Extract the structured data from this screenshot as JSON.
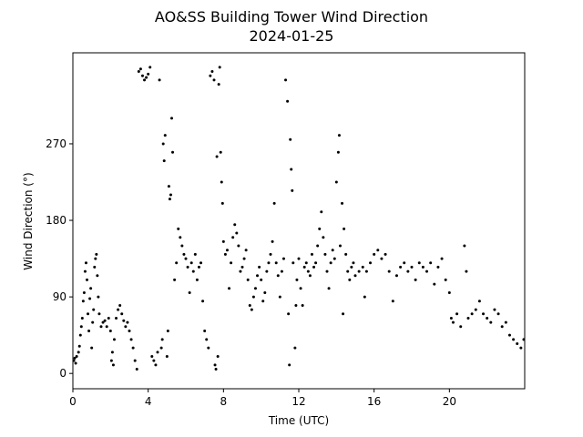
{
  "chart_data": {
    "type": "scatter",
    "title": "AO&SS Building Tower Wind Direction",
    "subtitle": "2024-01-25",
    "x_label": "Time (UTC)",
    "y_label": "Wind Direction (°)",
    "color": "#000000",
    "grid": false,
    "xlim": [
      0,
      24
    ],
    "xticks": [
      0,
      4,
      8,
      12,
      16,
      20
    ],
    "ylim": [
      -18,
      377
    ],
    "yticks": [
      0,
      90,
      180,
      270
    ],
    "x": [
      0.05,
      0.1,
      0.15,
      0.2,
      0.3,
      0.35,
      0.4,
      0.45,
      0.5,
      0.55,
      0.6,
      0.65,
      0.7,
      0.75,
      0.8,
      0.85,
      0.9,
      0.95,
      1.0,
      1.05,
      1.1,
      1.15,
      1.2,
      1.25,
      1.3,
      1.35,
      1.4,
      1.5,
      1.6,
      1.7,
      1.8,
      1.9,
      2.0,
      2.05,
      2.1,
      2.15,
      2.2,
      2.3,
      2.4,
      2.5,
      2.6,
      2.7,
      2.8,
      2.9,
      3.0,
      3.1,
      3.2,
      3.3,
      3.4,
      3.5,
      3.6,
      3.7,
      3.8,
      3.9,
      4.0,
      4.1,
      4.2,
      4.3,
      4.4,
      4.5,
      4.6,
      4.7,
      4.75,
      4.8,
      4.85,
      4.9,
      5.0,
      5.05,
      5.1,
      5.15,
      5.2,
      5.25,
      5.3,
      5.4,
      5.5,
      5.6,
      5.7,
      5.8,
      5.9,
      6.0,
      6.1,
      6.2,
      6.3,
      6.4,
      6.5,
      6.6,
      6.7,
      6.8,
      6.9,
      7.0,
      7.1,
      7.2,
      7.3,
      7.4,
      7.5,
      7.55,
      7.6,
      7.65,
      7.7,
      7.75,
      7.8,
      7.85,
      7.9,
      7.95,
      8.0,
      8.1,
      8.2,
      8.3,
      8.4,
      8.5,
      8.6,
      8.7,
      8.8,
      8.9,
      9.0,
      9.1,
      9.2,
      9.3,
      9.4,
      9.5,
      9.6,
      9.7,
      9.8,
      9.9,
      10.0,
      10.1,
      10.2,
      10.3,
      10.4,
      10.5,
      10.6,
      10.7,
      10.8,
      10.9,
      11.0,
      11.1,
      11.2,
      11.3,
      11.4,
      11.45,
      11.5,
      11.55,
      11.6,
      11.65,
      11.7,
      11.8,
      11.85,
      11.9,
      12.0,
      12.1,
      12.2,
      12.3,
      12.4,
      12.5,
      12.6,
      12.7,
      12.8,
      12.9,
      13.0,
      13.1,
      13.2,
      13.3,
      13.4,
      13.5,
      13.6,
      13.7,
      13.8,
      13.9,
      14.0,
      14.1,
      14.15,
      14.2,
      14.3,
      14.35,
      14.4,
      14.5,
      14.6,
      14.7,
      14.8,
      14.9,
      15.0,
      15.2,
      15.4,
      15.5,
      15.6,
      15.8,
      16.0,
      16.2,
      16.4,
      16.6,
      16.8,
      17.0,
      17.2,
      17.4,
      17.6,
      17.8,
      18.0,
      18.2,
      18.4,
      18.6,
      18.8,
      19.0,
      19.2,
      19.4,
      19.6,
      19.8,
      20.0,
      20.1,
      20.2,
      20.4,
      20.6,
      20.8,
      20.9,
      21.0,
      21.2,
      21.4,
      21.6,
      21.8,
      22.0,
      22.2,
      22.4,
      22.6,
      22.8,
      23.0,
      23.2,
      23.4,
      23.6,
      23.8,
      23.95
    ],
    "values": [
      15,
      18,
      12,
      20,
      25,
      32,
      45,
      55,
      65,
      85,
      95,
      120,
      130,
      110,
      70,
      50,
      88,
      100,
      30,
      60,
      75,
      125,
      135,
      140,
      115,
      90,
      70,
      55,
      60,
      62,
      55,
      65,
      50,
      15,
      25,
      10,
      40,
      65,
      75,
      80,
      70,
      62,
      55,
      60,
      50,
      40,
      30,
      15,
      5,
      355,
      358,
      350,
      345,
      348,
      352,
      360,
      20,
      15,
      10,
      25,
      345,
      30,
      40,
      270,
      250,
      280,
      20,
      50,
      220,
      205,
      210,
      300,
      260,
      110,
      130,
      170,
      160,
      150,
      140,
      135,
      125,
      95,
      130,
      120,
      140,
      110,
      125,
      130,
      85,
      50,
      40,
      30,
      350,
      355,
      345,
      10,
      5,
      255,
      20,
      340,
      360,
      260,
      225,
      200,
      155,
      140,
      145,
      100,
      130,
      160,
      175,
      165,
      150,
      120,
      125,
      135,
      145,
      110,
      80,
      75,
      90,
      100,
      115,
      125,
      110,
      85,
      95,
      120,
      130,
      140,
      155,
      200,
      130,
      115,
      90,
      120,
      135,
      345,
      320,
      70,
      10,
      275,
      240,
      215,
      130,
      30,
      80,
      110,
      135,
      100,
      80,
      125,
      130,
      120,
      115,
      140,
      125,
      130,
      150,
      170,
      190,
      160,
      140,
      120,
      100,
      130,
      145,
      135,
      225,
      260,
      280,
      150,
      200,
      70,
      170,
      140,
      120,
      110,
      125,
      130,
      115,
      120,
      125,
      90,
      120,
      130,
      140,
      145,
      135,
      140,
      120,
      85,
      115,
      125,
      130,
      120,
      125,
      110,
      130,
      125,
      120,
      130,
      105,
      125,
      135,
      110,
      95,
      65,
      60,
      70,
      55,
      150,
      120,
      65,
      70,
      75,
      85,
      70,
      65,
      60,
      75,
      70,
      55,
      60,
      45,
      40,
      35,
      30,
      40
    ]
  }
}
